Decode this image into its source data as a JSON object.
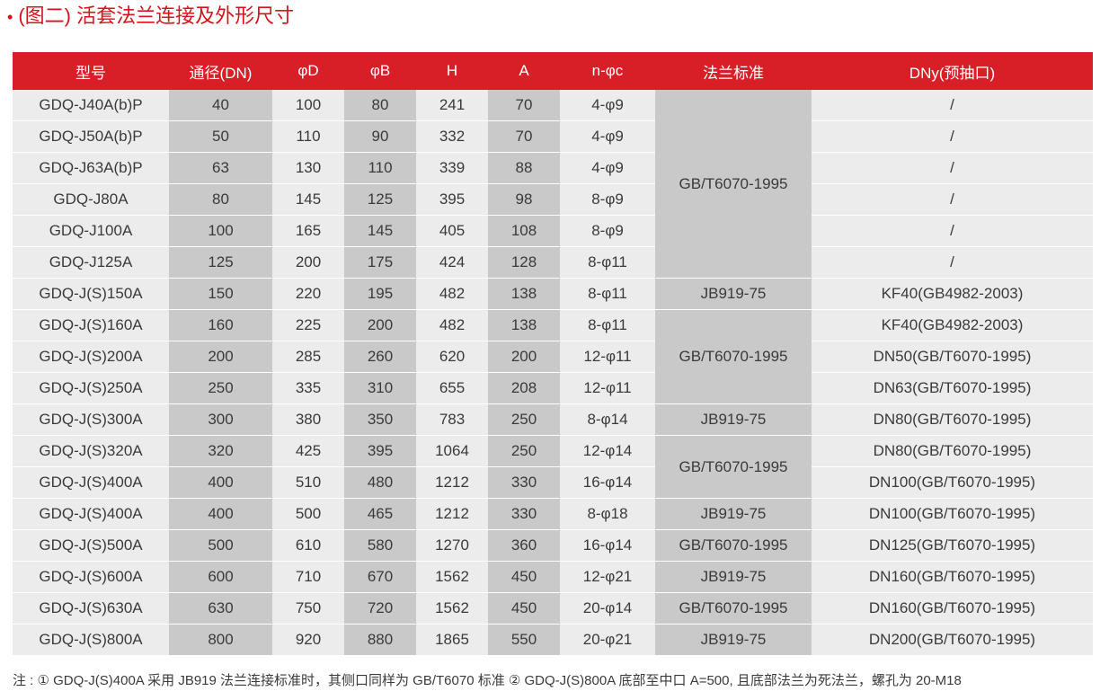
{
  "title": {
    "bullet": "•",
    "text": "(图二) 活套法兰连接及外形尺寸"
  },
  "table": {
    "headers": [
      "型号",
      "通径(DN)",
      "φD",
      "φB",
      "H",
      "A",
      "n-φc",
      "法兰标准",
      "DNy(预抽口)"
    ],
    "rows": [
      {
        "model": "GDQ-J40A(b)P",
        "dn": "40",
        "d": "100",
        "b": "80",
        "h": "241",
        "a": "70",
        "nc": "4-φ9",
        "dny": "/"
      },
      {
        "model": "GDQ-J50A(b)P",
        "dn": "50",
        "d": "110",
        "b": "90",
        "h": "332",
        "a": "70",
        "nc": "4-φ9",
        "dny": "/"
      },
      {
        "model": "GDQ-J63A(b)P",
        "dn": "63",
        "d": "130",
        "b": "110",
        "h": "339",
        "a": "88",
        "nc": "4-φ9",
        "dny": "/"
      },
      {
        "model": "GDQ-J80A",
        "dn": "80",
        "d": "145",
        "b": "125",
        "h": "395",
        "a": "98",
        "nc": "8-φ9",
        "dny": "/"
      },
      {
        "model": "GDQ-J100A",
        "dn": "100",
        "d": "165",
        "b": "145",
        "h": "405",
        "a": "108",
        "nc": "8-φ9",
        "dny": "/"
      },
      {
        "model": "GDQ-J125A",
        "dn": "125",
        "d": "200",
        "b": "175",
        "h": "424",
        "a": "128",
        "nc": "8-φ11",
        "dny": "/"
      },
      {
        "model": "GDQ-J(S)150A",
        "dn": "150",
        "d": "220",
        "b": "195",
        "h": "482",
        "a": "138",
        "nc": "8-φ11",
        "dny": "KF40(GB4982-2003)"
      },
      {
        "model": "GDQ-J(S)160A",
        "dn": "160",
        "d": "225",
        "b": "200",
        "h": "482",
        "a": "138",
        "nc": "8-φ11",
        "dny": "KF40(GB4982-2003)"
      },
      {
        "model": "GDQ-J(S)200A",
        "dn": "200",
        "d": "285",
        "b": "260",
        "h": "620",
        "a": "200",
        "nc": "12-φ11",
        "dny": "DN50(GB/T6070-1995)"
      },
      {
        "model": "GDQ-J(S)250A",
        "dn": "250",
        "d": "335",
        "b": "310",
        "h": "655",
        "a": "208",
        "nc": "12-φ11",
        "dny": "DN63(GB/T6070-1995)"
      },
      {
        "model": "GDQ-J(S)300A",
        "dn": "300",
        "d": "380",
        "b": "350",
        "h": "783",
        "a": "250",
        "nc": "8-φ14",
        "dny": "DN80(GB/T6070-1995)"
      },
      {
        "model": "GDQ-J(S)320A",
        "dn": "320",
        "d": "425",
        "b": "395",
        "h": "1064",
        "a": "250",
        "nc": "12-φ14",
        "dny": "DN80(GB/T6070-1995)"
      },
      {
        "model": "GDQ-J(S)400A",
        "dn": "400",
        "d": "510",
        "b": "480",
        "h": "1212",
        "a": "330",
        "nc": "16-φ14",
        "dny": "DN100(GB/T6070-1995)"
      },
      {
        "model": "GDQ-J(S)400A",
        "dn": "400",
        "d": "500",
        "b": "465",
        "h": "1212",
        "a": "330",
        "nc": "8-φ18",
        "dny": "DN100(GB/T6070-1995)"
      },
      {
        "model": "GDQ-J(S)500A",
        "dn": "500",
        "d": "610",
        "b": "580",
        "h": "1270",
        "a": "360",
        "nc": "16-φ14",
        "dny": "DN125(GB/T6070-1995)"
      },
      {
        "model": "GDQ-J(S)600A",
        "dn": "600",
        "d": "710",
        "b": "670",
        "h": "1562",
        "a": "450",
        "nc": "12-φ21",
        "dny": "DN160(GB/T6070-1995)"
      },
      {
        "model": "GDQ-J(S)630A",
        "dn": "630",
        "d": "750",
        "b": "720",
        "h": "1562",
        "a": "450",
        "nc": "20-φ14",
        "dny": "DN160(GB/T6070-1995)"
      },
      {
        "model": "GDQ-J(S)800A",
        "dn": "800",
        "d": "920",
        "b": "880",
        "h": "1865",
        "a": "550",
        "nc": "20-φ21",
        "dny": "DN200(GB/T6070-1995)"
      }
    ],
    "standard_groups": [
      {
        "label": "GB/T6070-1995",
        "rows": 6
      },
      {
        "label": "JB919-75",
        "rows": 1
      },
      {
        "label": "GB/T6070-1995",
        "rows": 3
      },
      {
        "label": "JB919-75",
        "rows": 1
      },
      {
        "label": "GB/T6070-1995",
        "rows": 2
      },
      {
        "label": "JB919-75",
        "rows": 1
      },
      {
        "label": "GB/T6070-1995",
        "rows": 1
      },
      {
        "label": "JB919-75",
        "rows": 1
      },
      {
        "label": "GB/T6070-1995",
        "rows": 1
      },
      {
        "label": "JB919-75",
        "rows": 1
      }
    ]
  },
  "note": "注 : ① GDQ-J(S)400A 采用 JB919 法兰连接标准时，其侧口同样为 GB/T6070 标准 ② GDQ-J(S)800A 底部至中口 A=500, 且底部法兰为死法兰，螺孔为 20-M18",
  "colors": {
    "accent": "#d81e26",
    "title": "#d6121a",
    "row_light": "#ececec",
    "row_shaded": "#c9c9c9"
  }
}
